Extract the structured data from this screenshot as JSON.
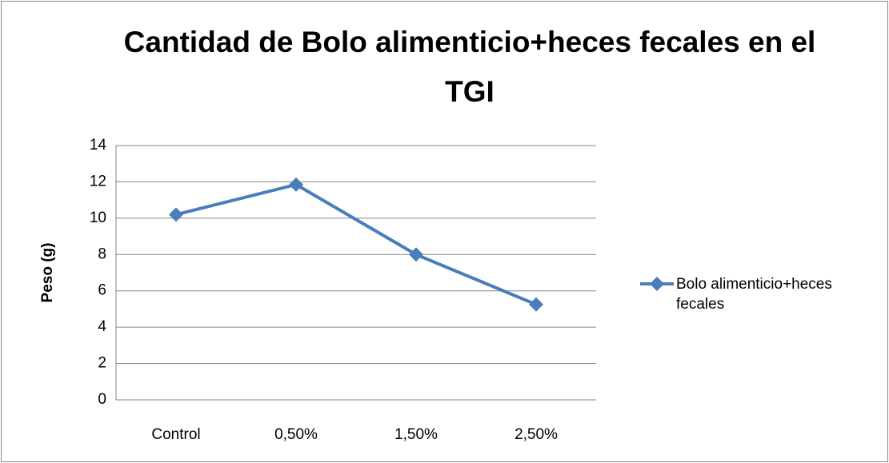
{
  "chart_data": {
    "type": "line",
    "title": "Cantidad de Bolo alimenticio+heces fecales en el TGI",
    "y_label": "Peso (g)",
    "categories": [
      "Control",
      "0,50%",
      "1,50%",
      "2,50%"
    ],
    "series": [
      {
        "name": "Bolo alimenticio+heces fecales",
        "color": "#4a7ebb",
        "values": [
          10.2,
          11.85,
          8.0,
          5.25
        ]
      }
    ],
    "ylim": [
      0,
      14
    ],
    "yticks": [
      0,
      2,
      4,
      6,
      8,
      10,
      12,
      14
    ],
    "grid": true,
    "legend": "right"
  }
}
